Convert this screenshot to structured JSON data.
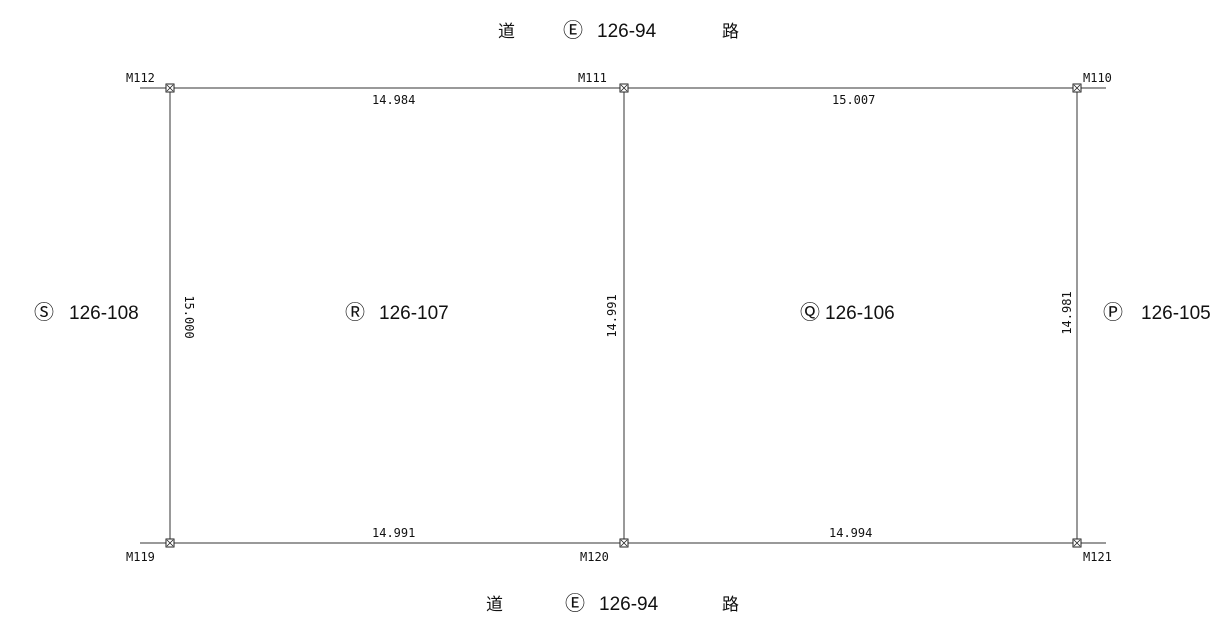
{
  "road_top": {
    "left_char": "道",
    "symbol": "Ⓔ",
    "number": "126-94",
    "right_char": "路"
  },
  "road_bottom": {
    "left_char": "道",
    "symbol": "Ⓔ",
    "number": "126-94",
    "right_char": "路"
  },
  "parcels": {
    "s": {
      "symbol": "Ⓢ",
      "number": "126-108"
    },
    "r": {
      "symbol": "Ⓡ",
      "number": "126-107"
    },
    "q": {
      "symbol": "Ⓠ",
      "number": "126-106"
    },
    "p": {
      "symbol": "Ⓟ",
      "number": "126-105"
    }
  },
  "monuments": {
    "m112": "M112",
    "m111": "M111",
    "m110": "M110",
    "m119": "M119",
    "m120": "M120",
    "m121": "M121"
  },
  "distances": {
    "top_left": "14.984",
    "top_right": "15.007",
    "bottom_left": "14.991",
    "bottom_right": "14.994",
    "left_side": "15.000",
    "middle": "14.991",
    "right_side": "14.981"
  }
}
